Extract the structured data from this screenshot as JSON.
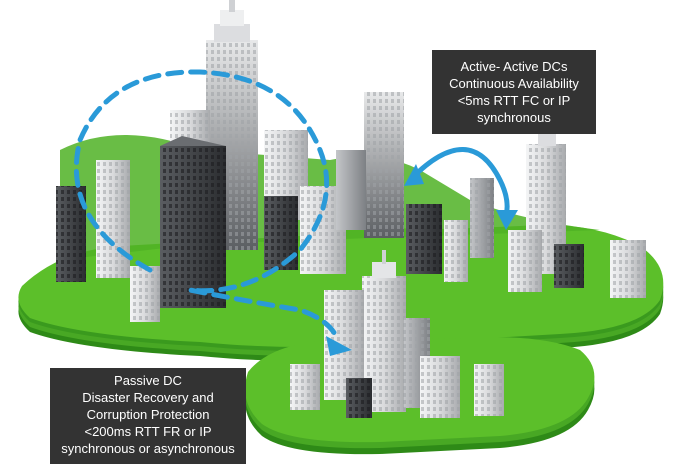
{
  "active_label": {
    "lines": [
      "Active- Active DCs",
      "Continuous Availability",
      "<5ms RTT FC or IP",
      "synchronous"
    ]
  },
  "passive_label": {
    "lines": [
      "Passive DC",
      "Disaster Recovery and",
      "Corruption Protection",
      "<200ms RTT FR or IP",
      "synchronous or asynchronous"
    ]
  },
  "colors": {
    "ground_green": "#5cbf2a",
    "ground_dark": "#2e8a17",
    "arrow_blue": "#2a9ad8",
    "callout_bg": "#333333",
    "building_light": "#d9dadc",
    "building_dark": "#3e4044"
  }
}
